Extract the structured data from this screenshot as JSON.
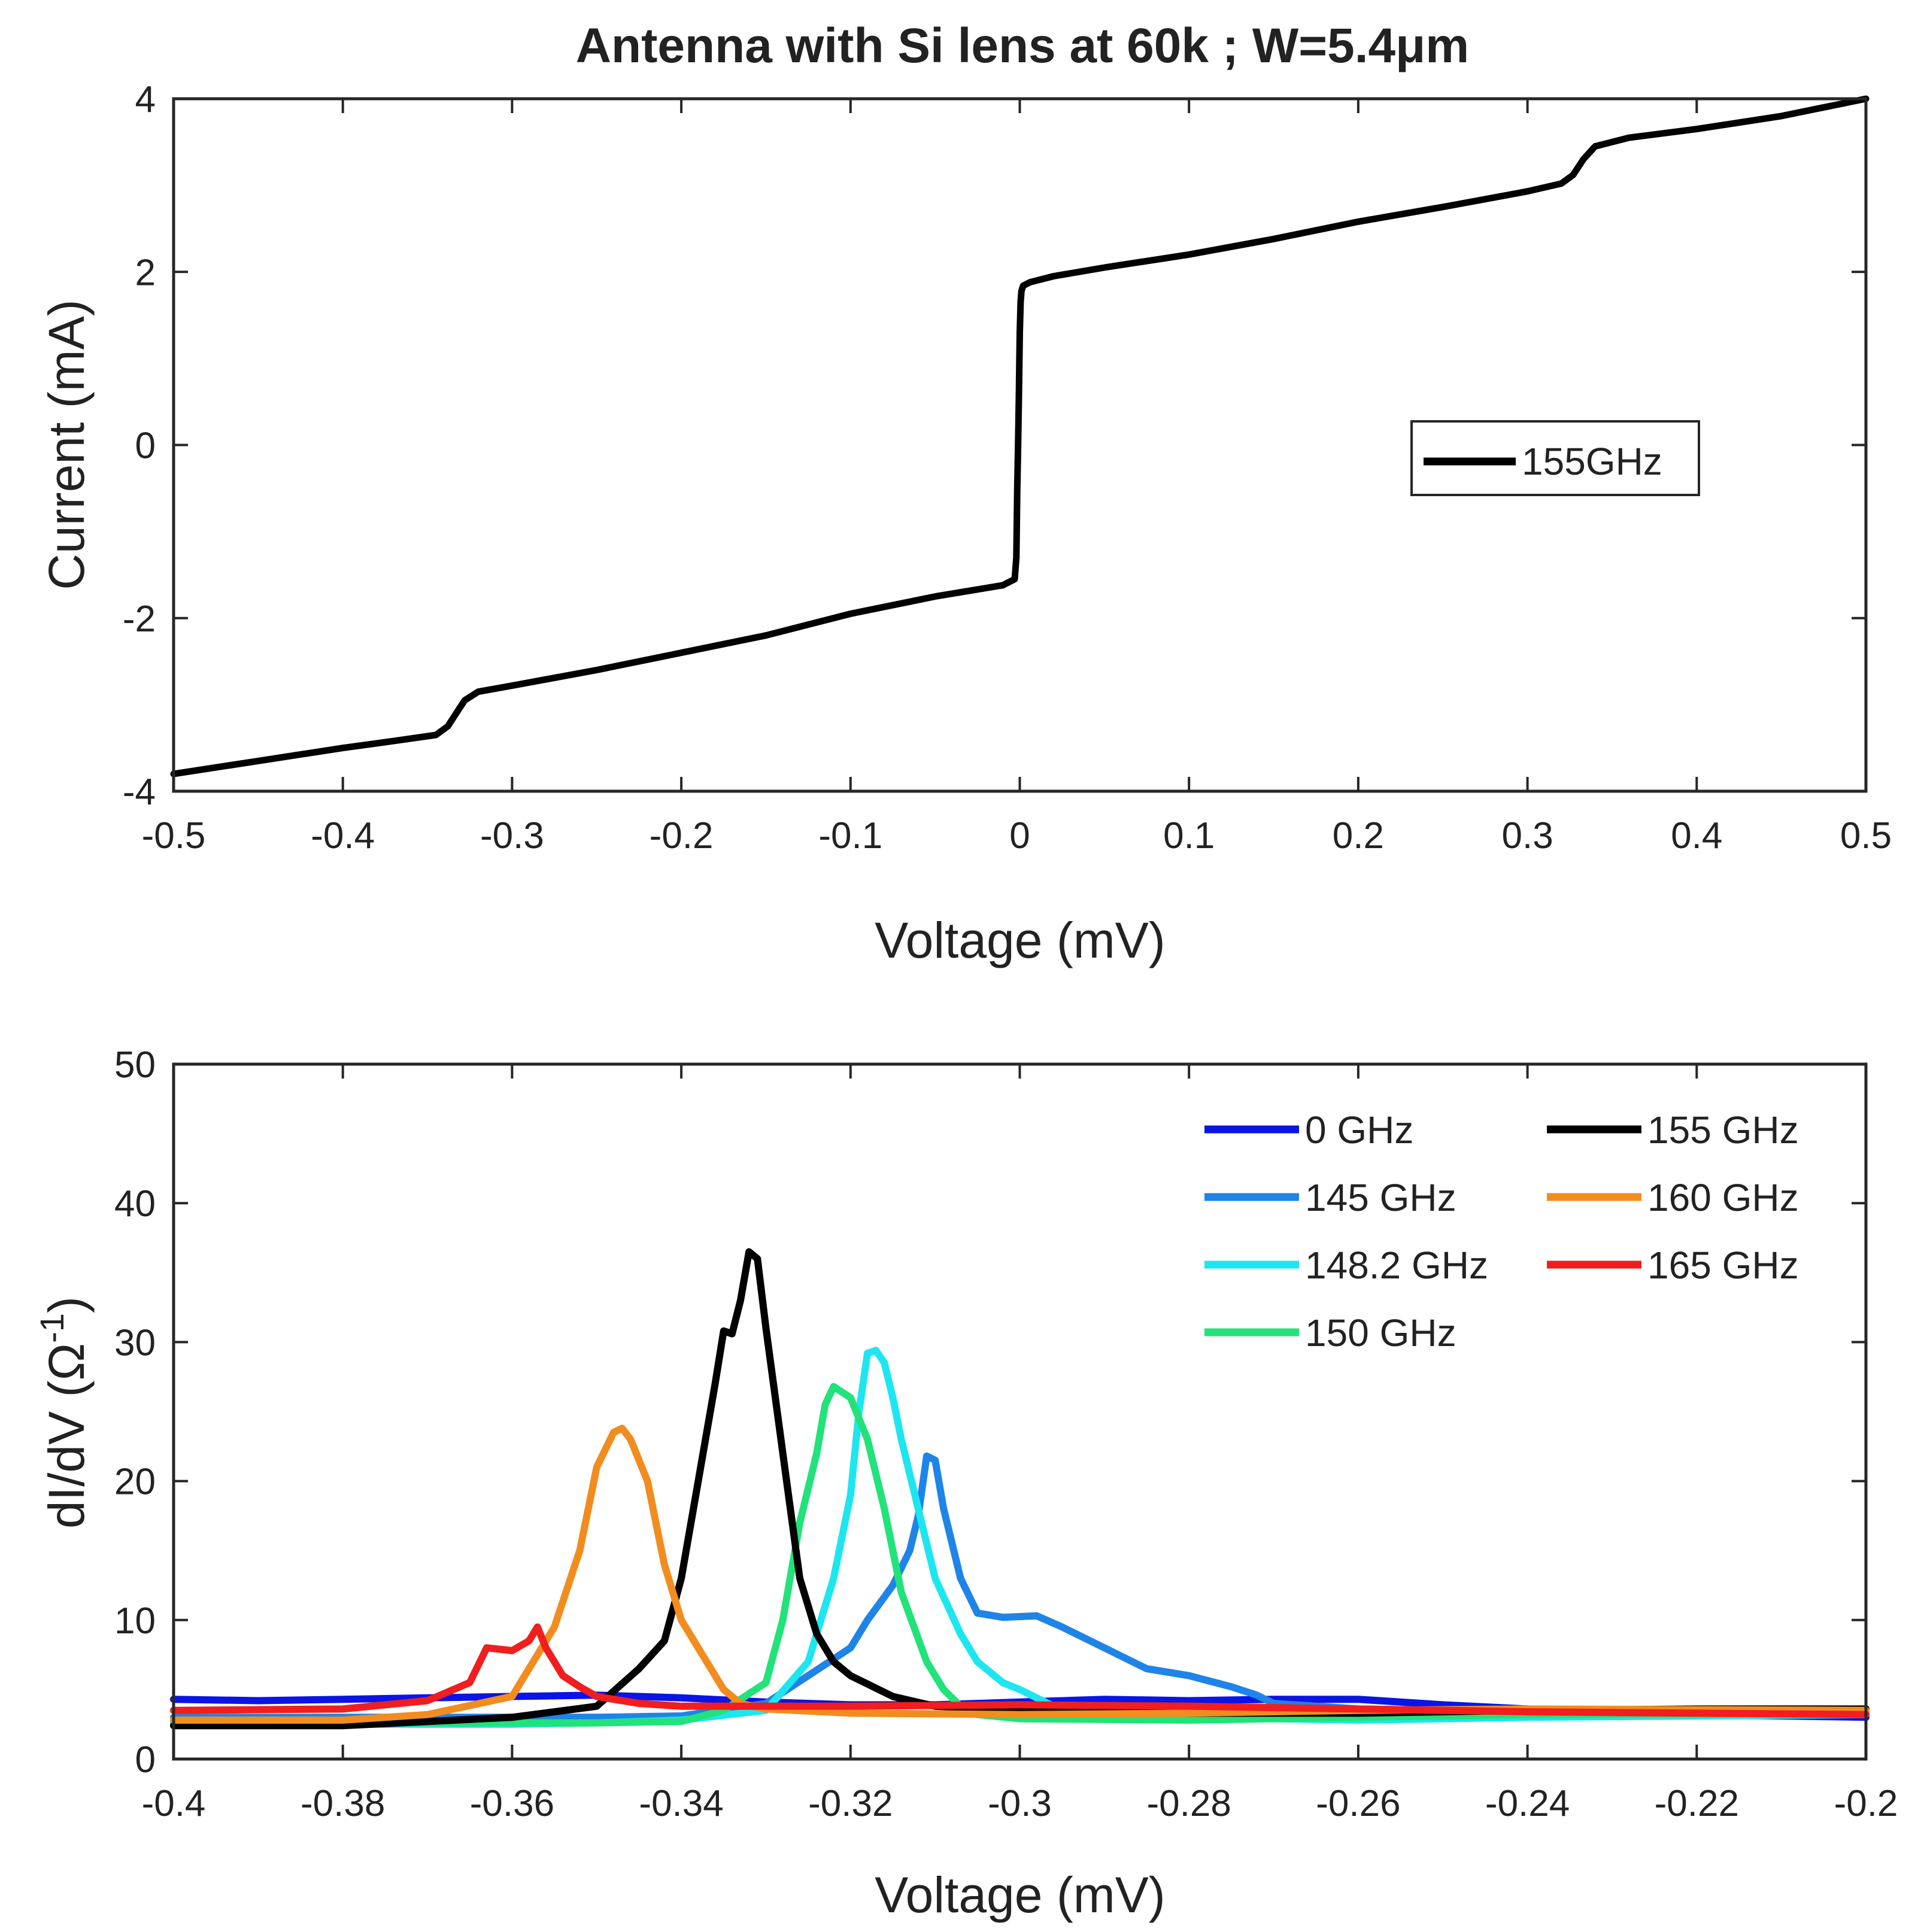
{
  "chart_data": [
    {
      "type": "line",
      "title": "Antenna with Si lens at 60k ; W=5.4μm",
      "xlabel": "Voltage (mV)",
      "ylabel": "Current (mA)",
      "xlim": [
        -0.5,
        0.5
      ],
      "ylim": [
        -4,
        4
      ],
      "xticks": [
        "-0.5",
        "-0.4",
        "-0.3",
        "-0.2",
        "-0.1",
        "0",
        "0.1",
        "0.2",
        "0.3",
        "0.4",
        "0.5"
      ],
      "xtick_values": [
        -0.5,
        -0.4,
        -0.3,
        -0.2,
        -0.1,
        0,
        0.1,
        0.2,
        0.3,
        0.4,
        0.5
      ],
      "yticks": [
        "-4",
        "-2",
        "0",
        "2",
        "4"
      ],
      "ytick_values": [
        -4,
        -2,
        0,
        2,
        4
      ],
      "legend_position": "middle-right",
      "series": [
        {
          "name": "155GHz",
          "color": "#000000",
          "x": [
            -0.5,
            -0.45,
            -0.4,
            -0.37,
            -0.345,
            -0.338,
            -0.333,
            -0.328,
            -0.32,
            -0.3,
            -0.25,
            -0.2,
            -0.15,
            -0.1,
            -0.05,
            -0.01,
            -0.003,
            -0.002,
            -0.0015,
            -0.001,
            -0.0005,
            0.0,
            0.0005,
            0.001,
            0.002,
            0.006,
            0.02,
            0.05,
            0.1,
            0.15,
            0.2,
            0.25,
            0.3,
            0.32,
            0.327,
            0.333,
            0.34,
            0.36,
            0.4,
            0.45,
            0.5
          ],
          "y": [
            -3.8,
            -3.65,
            -3.5,
            -3.42,
            -3.35,
            -3.25,
            -3.1,
            -2.95,
            -2.85,
            -2.78,
            -2.6,
            -2.4,
            -2.2,
            -1.95,
            -1.75,
            -1.62,
            -1.55,
            -1.3,
            -0.5,
            0.0,
            0.6,
            1.3,
            1.65,
            1.78,
            1.84,
            1.88,
            1.95,
            2.05,
            2.2,
            2.38,
            2.58,
            2.75,
            2.93,
            3.02,
            3.12,
            3.3,
            3.45,
            3.55,
            3.65,
            3.8,
            4.0
          ]
        }
      ]
    },
    {
      "type": "line",
      "title": "",
      "xlabel": "Voltage (mV)",
      "ylabel": "dI/dV (Ω",
      "ylabel_superscript": "-1",
      "ylabel_close": ")",
      "xlim": [
        -0.4,
        -0.2
      ],
      "ylim": [
        0,
        50
      ],
      "xticks": [
        "-0.4",
        "-0.38",
        "-0.36",
        "-0.34",
        "-0.32",
        "-0.3",
        "-0.28",
        "-0.26",
        "-0.24",
        "-0.22",
        "-0.2"
      ],
      "xtick_values": [
        -0.4,
        -0.38,
        -0.36,
        -0.34,
        -0.32,
        -0.3,
        -0.28,
        -0.26,
        -0.24,
        -0.22,
        -0.2
      ],
      "yticks": [
        "0",
        "10",
        "20",
        "30",
        "40",
        "50"
      ],
      "ytick_values": [
        0,
        10,
        20,
        30,
        40,
        50
      ],
      "legend_position": "top-right",
      "series": [
        {
          "name": "0 GHz",
          "color": "#0a14e6",
          "x": [
            -0.4,
            -0.39,
            -0.38,
            -0.37,
            -0.36,
            -0.35,
            -0.34,
            -0.33,
            -0.32,
            -0.31,
            -0.3,
            -0.29,
            -0.28,
            -0.27,
            -0.26,
            -0.25,
            -0.24,
            -0.23,
            -0.22,
            -0.21,
            -0.2
          ],
          "y": [
            4.3,
            4.2,
            4.3,
            4.4,
            4.5,
            4.6,
            4.4,
            4.1,
            3.9,
            3.9,
            4.1,
            4.3,
            4.2,
            4.3,
            4.3,
            3.9,
            3.6,
            3.4,
            3.2,
            3.1,
            3.0
          ]
        },
        {
          "name": "145 GHz",
          "color": "#1e84e8",
          "x": [
            -0.4,
            -0.35,
            -0.34,
            -0.33,
            -0.325,
            -0.32,
            -0.318,
            -0.315,
            -0.313,
            -0.312,
            -0.311,
            -0.31,
            -0.309,
            -0.307,
            -0.305,
            -0.302,
            -0.298,
            -0.295,
            -0.29,
            -0.285,
            -0.28,
            -0.275,
            -0.272,
            -0.27,
            -0.26,
            -0.25,
            -0.24,
            -0.22,
            -0.2
          ],
          "y": [
            3.0,
            3.0,
            3.1,
            4.0,
            6.0,
            8.0,
            10.0,
            12.5,
            15.0,
            17.5,
            21.8,
            21.5,
            18.0,
            13.0,
            10.5,
            10.2,
            10.3,
            9.5,
            8.0,
            6.5,
            6.0,
            5.2,
            4.6,
            4.0,
            3.6,
            3.5,
            3.4,
            3.3,
            3.2
          ]
        },
        {
          "name": "148.2 GHz",
          "color": "#1ee6f0",
          "x": [
            -0.4,
            -0.36,
            -0.35,
            -0.34,
            -0.33,
            -0.325,
            -0.322,
            -0.32,
            -0.319,
            -0.318,
            -0.317,
            -0.316,
            -0.315,
            -0.314,
            -0.312,
            -0.31,
            -0.307,
            -0.305,
            -0.302,
            -0.3,
            -0.295,
            -0.28,
            -0.26,
            -0.24,
            -0.2
          ],
          "y": [
            2.5,
            2.5,
            2.6,
            2.8,
            3.5,
            7.0,
            13.0,
            19.0,
            25.0,
            29.2,
            29.4,
            28.5,
            26.0,
            23.0,
            18.0,
            13.0,
            9.0,
            7.0,
            5.5,
            5.0,
            3.5,
            3.0,
            2.8,
            3.0,
            3.2
          ]
        },
        {
          "name": "150 GHz",
          "color": "#22e27a",
          "x": [
            -0.4,
            -0.35,
            -0.34,
            -0.335,
            -0.33,
            -0.328,
            -0.326,
            -0.324,
            -0.323,
            -0.322,
            -0.32,
            -0.318,
            -0.316,
            -0.314,
            -0.311,
            -0.309,
            -0.307,
            -0.305,
            -0.3,
            -0.28,
            -0.26,
            -0.24,
            -0.2
          ],
          "y": [
            2.6,
            2.6,
            2.7,
            3.5,
            5.5,
            10.0,
            17.0,
            22.0,
            25.5,
            26.8,
            26.0,
            23.0,
            18.0,
            12.0,
            7.0,
            5.0,
            3.8,
            3.2,
            2.9,
            2.8,
            3.0,
            3.2,
            3.3
          ]
        },
        {
          "name": "155 GHz",
          "color": "#000000",
          "x": [
            -0.4,
            -0.38,
            -0.36,
            -0.35,
            -0.345,
            -0.342,
            -0.34,
            -0.338,
            -0.336,
            -0.335,
            -0.334,
            -0.333,
            -0.332,
            -0.331,
            -0.33,
            -0.328,
            -0.326,
            -0.324,
            -0.322,
            -0.32,
            -0.315,
            -0.31,
            -0.3,
            -0.28,
            -0.26,
            -0.24,
            -0.22,
            -0.2
          ],
          "y": [
            2.4,
            2.4,
            3.0,
            3.8,
            6.5,
            8.5,
            13.0,
            20.0,
            27.0,
            30.8,
            30.6,
            33.0,
            36.5,
            36.0,
            31.0,
            22.0,
            13.0,
            9.0,
            7.0,
            6.0,
            4.5,
            3.8,
            3.5,
            3.3,
            3.3,
            3.5,
            3.6,
            3.6
          ]
        },
        {
          "name": "160 GHz",
          "color": "#f28c1e",
          "x": [
            -0.4,
            -0.38,
            -0.37,
            -0.36,
            -0.355,
            -0.352,
            -0.35,
            -0.348,
            -0.347,
            -0.346,
            -0.344,
            -0.342,
            -0.34,
            -0.337,
            -0.335,
            -0.333,
            -0.33,
            -0.32,
            -0.3,
            -0.28,
            -0.26,
            -0.24,
            -0.2
          ],
          "y": [
            2.8,
            2.8,
            3.2,
            4.5,
            9.5,
            15.0,
            21.0,
            23.5,
            23.8,
            23.0,
            20.0,
            14.0,
            10.0,
            7.0,
            5.0,
            4.0,
            3.6,
            3.3,
            3.2,
            3.3,
            3.5,
            3.6,
            3.5
          ]
        },
        {
          "name": "165 GHz",
          "color": "#f01e1e",
          "x": [
            -0.4,
            -0.38,
            -0.37,
            -0.365,
            -0.363,
            -0.36,
            -0.358,
            -0.357,
            -0.356,
            -0.354,
            -0.352,
            -0.35,
            -0.345,
            -0.34,
            -0.33,
            -0.32,
            -0.3,
            -0.28,
            -0.26,
            -0.24,
            -0.22,
            -0.2
          ],
          "y": [
            3.5,
            3.6,
            4.2,
            5.5,
            8.0,
            7.8,
            8.5,
            9.5,
            8.0,
            6.0,
            5.2,
            4.5,
            4.0,
            3.8,
            3.8,
            3.8,
            3.9,
            3.8,
            3.6,
            3.4,
            3.3,
            3.2
          ]
        }
      ]
    }
  ]
}
